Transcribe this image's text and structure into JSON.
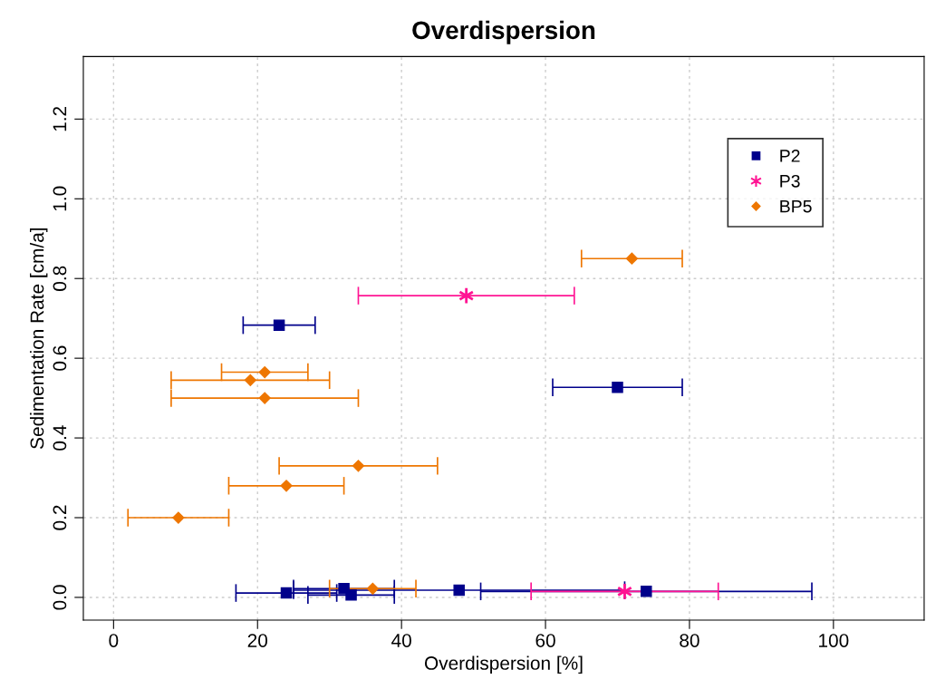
{
  "chart_data": {
    "type": "scatter",
    "title": "Overdispersion",
    "xlabel": "Overdispersion [%]",
    "ylabel": "Sedimentation Rate [cm/a]",
    "xlim": [
      -4.2,
      112.6
    ],
    "ylim": [
      -0.057,
      1.357
    ],
    "xticks": [
      0,
      20,
      40,
      60,
      80,
      100
    ],
    "yticks": [
      {
        "value": 0,
        "label": "0.0"
      },
      0.2,
      0.4,
      0.6,
      0.8,
      {
        "value": 1,
        "label": "1.0"
      },
      1.2
    ],
    "grid": true,
    "legend": "top right",
    "series": [
      {
        "name": "P2",
        "color": "#00008b",
        "marker": "square",
        "x": [
          24,
          32,
          33,
          48,
          74,
          23,
          70
        ],
        "values": [
          0.011,
          0.022,
          0.006,
          0.018,
          0.015,
          0.683,
          0.527
        ],
        "xerrors": [
          [
            17,
            31
          ],
          [
            25,
            39
          ],
          [
            27,
            39
          ],
          [
            25,
            71
          ],
          [
            51,
            97
          ],
          [
            18,
            28
          ],
          [
            61,
            79
          ]
        ]
      },
      {
        "name": "P3",
        "color": "#ff1493",
        "marker": "cross",
        "x": [
          71,
          49
        ],
        "values": [
          0.015,
          0.757
        ],
        "xerrors": [
          [
            58,
            84
          ],
          [
            34,
            64
          ]
        ]
      },
      {
        "name": "BP5",
        "color": "#ee7600",
        "marker": "diamond",
        "x": [
          36,
          72,
          21,
          19,
          21,
          34,
          24,
          9
        ],
        "values": [
          0.022,
          0.85,
          0.565,
          0.545,
          0.5,
          0.33,
          0.28,
          0.2
        ],
        "xerrors": [
          [
            30,
            42
          ],
          [
            65,
            79
          ],
          [
            15,
            27
          ],
          [
            8,
            30
          ],
          [
            8,
            34
          ],
          [
            23,
            45
          ],
          [
            16,
            32
          ],
          [
            2,
            16
          ]
        ]
      }
    ]
  }
}
